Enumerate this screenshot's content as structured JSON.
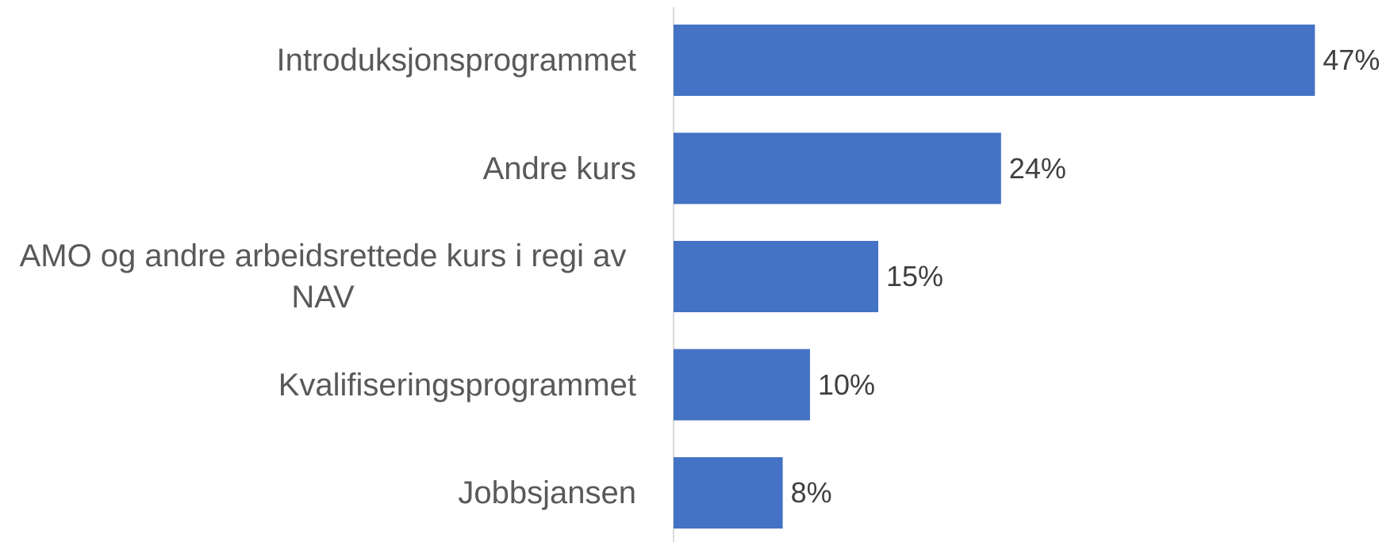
{
  "chart_data": {
    "type": "bar",
    "orientation": "horizontal",
    "categories": [
      "Introduksjonsprogrammet",
      "Andre kurs",
      "AMO og andre arbeidsrettede kurs i regi av NAV",
      "Kvalifiseringsprogrammet",
      "Jobbsjansen"
    ],
    "values": [
      47,
      24,
      15,
      10,
      8
    ],
    "value_labels": [
      "47%",
      "24%",
      "15%",
      "10%",
      "8%"
    ],
    "color": "#4472c4"
  }
}
